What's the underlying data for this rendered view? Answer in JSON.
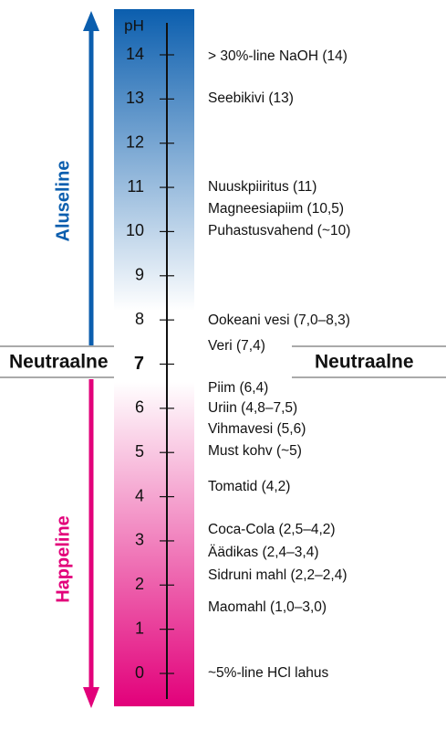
{
  "scale": {
    "unit": "pH",
    "ticks": [
      14,
      13,
      12,
      11,
      10,
      9,
      8,
      7,
      6,
      5,
      4,
      3,
      2,
      1,
      0
    ]
  },
  "neutral": {
    "left": "Neutraalne",
    "right": "Neutraalne"
  },
  "base_label": "Aluseline",
  "acid_label": "Happeline",
  "items": [
    "> 30%-line NaOH (14)",
    "Seebikivi (13)",
    "Nuuskpiiritus (11)",
    "Magneesiapiim (10,5)",
    "Puhastusvahend (~10)",
    "Ookeani vesi (7,0–8,3)",
    "Veri (7,4)",
    "Piim (6,4)",
    "Uriin (4,8–7,5)",
    "Vihmavesi (5,6)",
    "Must kohv (~5)",
    "Tomatid (4,2)",
    "Coca-Cola (2,5–4,2)",
    "Äädikas (2,4–3,4)",
    "Sidruni mahl (2,2–2,4)",
    "Maomahl (1,0–3,0)",
    "~5%-line HCl lahus"
  ]
}
